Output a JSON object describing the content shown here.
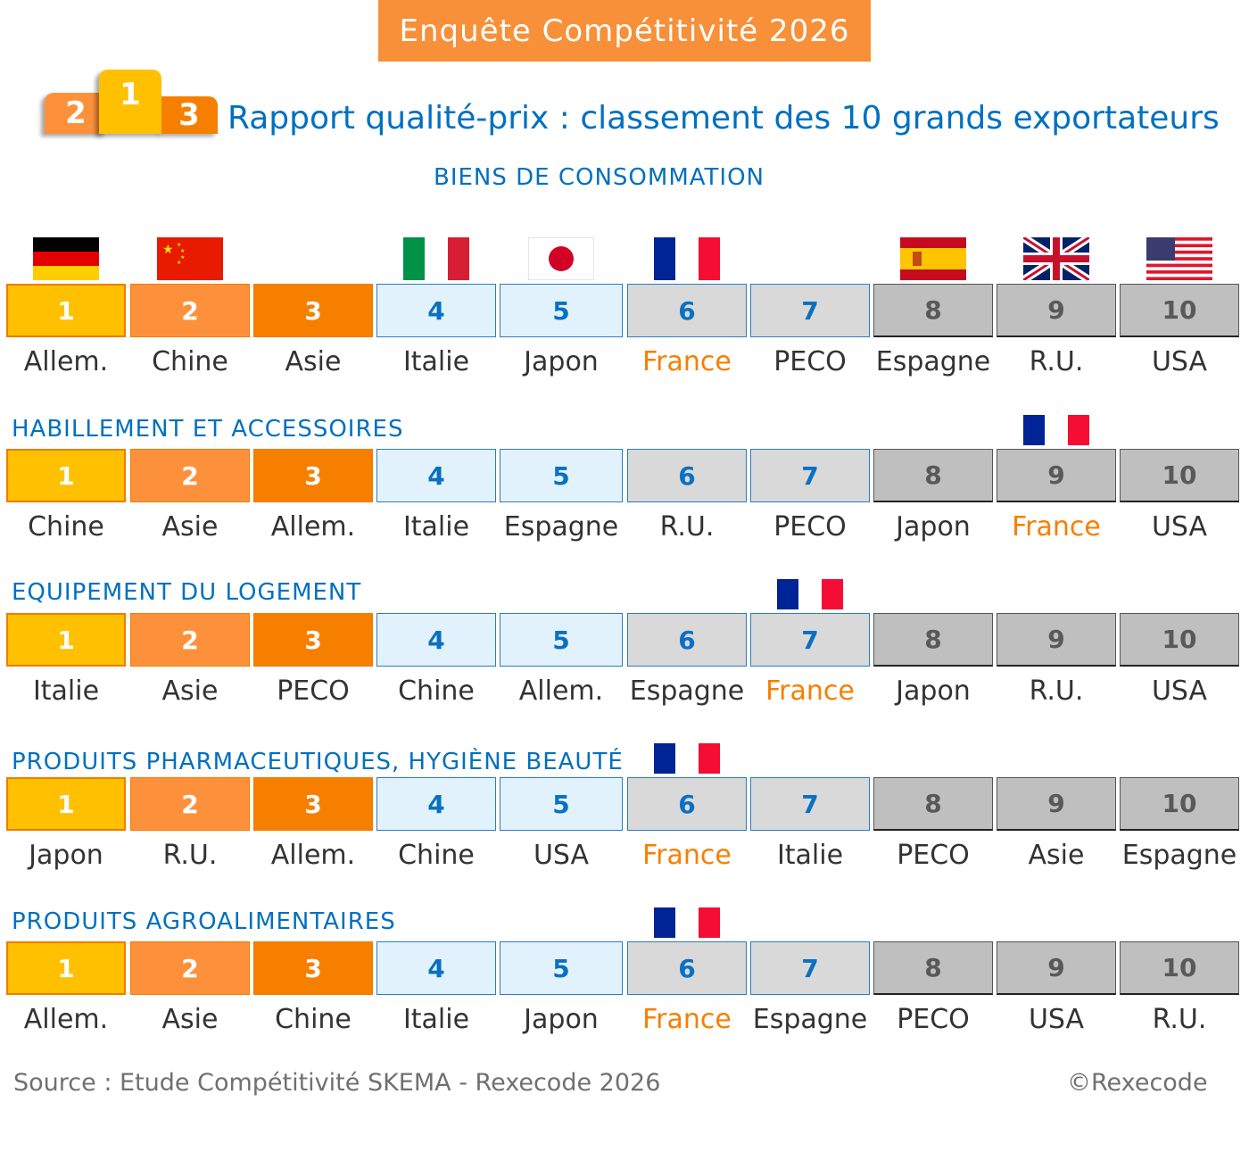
{
  "banner": "Enquête Compétitivité 2026",
  "podium": {
    "first": "1",
    "second": "2",
    "third": "3"
  },
  "subtitle": "Rapport qualité-prix : classement des 10 grands exportateurs",
  "colors": {
    "rank1": "#ffc000",
    "rank2": "#fd913b",
    "rank3": "#f77f00",
    "rank4_5": "#e2f2fd",
    "rank6_7": "#d9d9d9",
    "rank8_10": "#bfbfbf",
    "title_blue": "#0070c0",
    "france_orange": "#f77f00"
  },
  "ranks": [
    "1",
    "2",
    "3",
    "4",
    "5",
    "6",
    "7",
    "8",
    "9",
    "10"
  ],
  "sections": [
    {
      "title": "BIENS DE CONSOMMATION",
      "countries": [
        "Allem.",
        "Chine",
        "Asie",
        "Italie",
        "Japon",
        "France",
        "PECO",
        "Espagne",
        "R.U.",
        "USA"
      ],
      "flags": [
        "germany-flag",
        "china-flag",
        null,
        "italy-flag",
        "japan-flag",
        "france-flag",
        null,
        "spain-flag",
        "uk-flag",
        "usa-flag"
      ]
    },
    {
      "title": "HABILLEMENT ET ACCESSOIRES",
      "countries": [
        "Chine",
        "Asie",
        "Allem.",
        "Italie",
        "Espagne",
        "R.U.",
        "PECO",
        "Japon",
        "France",
        "USA"
      ]
    },
    {
      "title": "EQUIPEMENT DU LOGEMENT",
      "countries": [
        "Italie",
        "Asie",
        "PECO",
        "Chine",
        "Allem.",
        "Espagne",
        "France",
        "Japon",
        "R.U.",
        "USA"
      ]
    },
    {
      "title": "PRODUITS PHARMACEUTIQUES, HYGIÈNE BEAUTÉ",
      "countries": [
        "Japon",
        "R.U.",
        "Allem.",
        "Chine",
        "USA",
        "France",
        "Italie",
        "PECO",
        "Asie",
        "Espagne"
      ]
    },
    {
      "title": "PRODUITS AGROALIMENTAIRES",
      "countries": [
        "Allem.",
        "Asie",
        "Chine",
        "Italie",
        "Japon",
        "France",
        "Espagne",
        "PECO",
        "USA",
        "R.U."
      ]
    }
  ],
  "highlight_country": "France",
  "source": "Source : Etude Compétitivité SKEMA - Rexecode 2026",
  "copyright": "©Rexecode"
}
